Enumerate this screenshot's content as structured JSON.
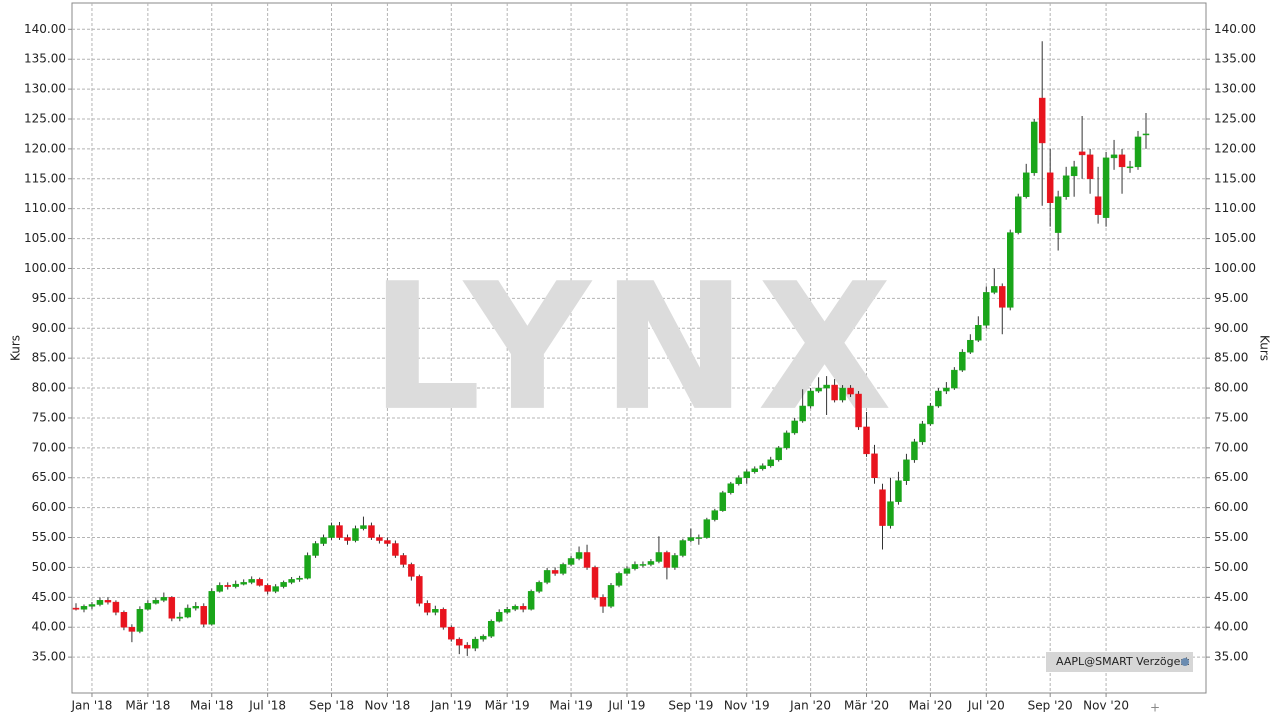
{
  "chart_data": {
    "type": "candlestick",
    "y_label": "Kurs",
    "watermark": "LYNX",
    "source_label": "AAPL@SMART Verzögert",
    "up_color": "#1aa51a",
    "down_color": "#e8141e",
    "grid": true,
    "ylim": [
      29,
      144.4
    ],
    "yticks": [
      {
        "value": 35,
        "label": "35.00"
      },
      {
        "value": 40,
        "label": "40.00"
      },
      {
        "value": 45,
        "label": "45.00"
      },
      {
        "value": 50,
        "label": "50.00"
      },
      {
        "value": 55,
        "label": "55.00"
      },
      {
        "value": 60,
        "label": "60.00"
      },
      {
        "value": 65,
        "label": "65.00"
      },
      {
        "value": 70,
        "label": "70.00"
      },
      {
        "value": 75,
        "label": "75.00"
      },
      {
        "value": 80,
        "label": "80.00"
      },
      {
        "value": 85,
        "label": "85.00"
      },
      {
        "value": 90,
        "label": "90.00"
      },
      {
        "value": 95,
        "label": "95.00"
      },
      {
        "value": 100,
        "label": "100.00"
      },
      {
        "value": 105,
        "label": "105.00"
      },
      {
        "value": 110,
        "label": "110.00"
      },
      {
        "value": 115,
        "label": "115.00"
      },
      {
        "value": 120,
        "label": "120.00"
      },
      {
        "value": 125,
        "label": "125.00"
      },
      {
        "value": 130,
        "label": "130.00"
      },
      {
        "value": 135,
        "label": "135.00"
      },
      {
        "value": 140,
        "label": "140.00"
      }
    ],
    "categories": [
      null,
      null,
      "Jan '18",
      null,
      null,
      null,
      null,
      null,
      null,
      "Mär '18",
      null,
      null,
      null,
      null,
      null,
      null,
      null,
      "Mai '18",
      null,
      null,
      null,
      null,
      null,
      null,
      "Jul '18",
      null,
      null,
      null,
      null,
      null,
      null,
      null,
      "Sep '18",
      null,
      null,
      null,
      null,
      null,
      null,
      "Nov '18",
      null,
      null,
      null,
      null,
      null,
      null,
      null,
      "Jan '19",
      null,
      null,
      null,
      null,
      null,
      null,
      "Mär '19",
      null,
      null,
      null,
      null,
      null,
      null,
      null,
      "Mai '19",
      null,
      null,
      null,
      null,
      null,
      null,
      "Jul '19",
      null,
      null,
      null,
      null,
      null,
      null,
      null,
      "Sep '19",
      null,
      null,
      null,
      null,
      null,
      null,
      "Nov '19",
      null,
      null,
      null,
      null,
      null,
      null,
      null,
      "Jan '20",
      null,
      null,
      null,
      null,
      null,
      null,
      "Mär '20",
      null,
      null,
      null,
      null,
      null,
      null,
      null,
      "Mai '20",
      null,
      null,
      null,
      null,
      null,
      null,
      "Jul '20",
      null,
      null,
      null,
      null,
      null,
      null,
      null,
      "Sep '20",
      null,
      null,
      null,
      null,
      null,
      null,
      "Nov '20",
      null,
      null,
      null,
      null,
      null
    ],
    "open": [
      43.2,
      43.0,
      43.5,
      43.8,
      44.5,
      44.2,
      42.5,
      40.0,
      39.3,
      43.0,
      44.0,
      44.5,
      45.0,
      41.5,
      41.7,
      43.2,
      43.5,
      40.5,
      46.0,
      47.0,
      46.8,
      47.2,
      47.5,
      48.0,
      47.0,
      46.0,
      46.8,
      47.5,
      48.0,
      48.2,
      52.0,
      54.0,
      55.0,
      57.0,
      55.0,
      54.5,
      56.5,
      57.0,
      55.0,
      54.5,
      54.0,
      52.0,
      50.5,
      48.5,
      44.0,
      42.5,
      43.0,
      40.0,
      38.0,
      37.0,
      36.5,
      38.0,
      38.5,
      41.0,
      42.5,
      43.0,
      43.5,
      43.0,
      46.0,
      47.5,
      49.5,
      49.0,
      50.5,
      51.5,
      52.5,
      50.0,
      45.0,
      43.5,
      47.0,
      49.0,
      49.8,
      50.5,
      50.5,
      51.0,
      52.5,
      50.0,
      52.0,
      54.5,
      55.0,
      55.0,
      58.0,
      59.5,
      62.5,
      64.0,
      65.0,
      66.0,
      66.5,
      67.0,
      68.0,
      70.0,
      72.5,
      74.5,
      77.0,
      79.5,
      80.0,
      80.5,
      78.0,
      80.0,
      79.0,
      73.5,
      69.0,
      63.0,
      57.0,
      61.0,
      64.5,
      68.0,
      71.0,
      74.0,
      77.0,
      79.5,
      80.0,
      83.0,
      86.0,
      88.0,
      90.5,
      96.0,
      97.0,
      93.5,
      106.0,
      112.0,
      116.0,
      128.5,
      116.0,
      106.0,
      112.0,
      115.5,
      119.5,
      119.0,
      112.0,
      108.5,
      118.5,
      119.0,
      117.0,
      117.0,
      122.5
    ],
    "high": [
      44.0,
      43.8,
      44.2,
      45.0,
      45.0,
      44.5,
      42.8,
      40.5,
      43.5,
      44.5,
      45.0,
      45.8,
      45.2,
      42.5,
      43.8,
      44.2,
      44.0,
      46.5,
      47.5,
      47.5,
      47.8,
      48.0,
      48.5,
      48.3,
      47.3,
      47.2,
      47.8,
      48.4,
      48.6,
      52.5,
      54.4,
      55.5,
      57.5,
      57.6,
      55.5,
      57.0,
      58.5,
      57.5,
      55.5,
      55.0,
      54.5,
      52.4,
      50.8,
      48.8,
      44.5,
      43.6,
      43.3,
      40.3,
      38.3,
      37.5,
      38.4,
      38.8,
      41.3,
      43.0,
      43.4,
      43.8,
      44.0,
      46.3,
      47.8,
      49.9,
      50.0,
      50.8,
      51.9,
      53.5,
      53.8,
      50.3,
      45.5,
      47.4,
      49.3,
      50.2,
      51.0,
      51.0,
      51.4,
      55.2,
      52.8,
      52.4,
      54.8,
      56.5,
      55.5,
      58.3,
      59.8,
      62.8,
      64.3,
      65.4,
      66.4,
      66.9,
      67.4,
      68.5,
      70.3,
      72.9,
      75.0,
      79.8,
      80.0,
      81.8,
      82.0,
      81.5,
      80.5,
      80.5,
      79.5,
      76.0,
      70.5,
      64.0,
      65.0,
      66.0,
      69.0,
      71.5,
      74.5,
      77.5,
      80.0,
      81.0,
      83.5,
      86.5,
      89.0,
      92.0,
      97.0,
      100.0,
      97.5,
      106.5,
      112.5,
      117.5,
      125.0,
      138.0,
      120.0,
      113.0,
      117.0,
      118.0,
      125.5,
      120.0,
      117.0,
      119.5,
      121.5,
      120.0,
      118.0,
      123.0,
      126.0
    ],
    "low": [
      42.8,
      42.5,
      43.0,
      43.5,
      43.8,
      42.0,
      39.5,
      37.5,
      39.0,
      42.8,
      43.8,
      44.2,
      41.0,
      41.0,
      41.5,
      42.8,
      40.0,
      40.3,
      45.8,
      46.3,
      46.5,
      47.0,
      47.2,
      46.8,
      45.5,
      45.7,
      46.5,
      47.2,
      47.6,
      48.0,
      51.6,
      53.6,
      54.6,
      54.6,
      53.8,
      54.2,
      56.2,
      54.6,
      54.0,
      53.5,
      51.6,
      50.0,
      47.8,
      43.5,
      42.0,
      42.0,
      39.6,
      37.6,
      35.5,
      35.2,
      36.0,
      37.6,
      38.2,
      40.8,
      42.2,
      42.7,
      42.5,
      42.8,
      45.7,
      47.2,
      48.6,
      48.7,
      50.2,
      51.2,
      49.6,
      44.6,
      42.4,
      43.2,
      46.7,
      48.6,
      49.5,
      50.0,
      50.2,
      50.7,
      48.0,
      49.6,
      51.7,
      54.2,
      53.8,
      54.8,
      57.7,
      59.3,
      62.2,
      63.7,
      64.0,
      65.7,
      66.2,
      66.7,
      67.7,
      69.7,
      72.2,
      74.2,
      76.6,
      79.2,
      75.5,
      77.6,
      77.6,
      78.5,
      73.0,
      68.5,
      64.0,
      53.0,
      56.5,
      60.5,
      63.8,
      67.5,
      70.5,
      73.7,
      76.7,
      79.0,
      79.7,
      82.7,
      85.7,
      87.7,
      90.0,
      95.7,
      89.0,
      93.0,
      105.7,
      111.7,
      115.5,
      110.5,
      107.0,
      103.0,
      111.5,
      112.0,
      115.0,
      112.5,
      107.5,
      107.0,
      116.5,
      112.5,
      116.0,
      116.5,
      120.0
    ],
    "close": [
      43.0,
      43.5,
      43.8,
      44.5,
      44.2,
      42.5,
      40.0,
      39.3,
      43.0,
      44.0,
      44.5,
      45.0,
      41.5,
      41.7,
      43.2,
      43.5,
      40.5,
      46.0,
      47.0,
      46.8,
      47.2,
      47.5,
      48.0,
      47.0,
      46.0,
      46.8,
      47.5,
      48.0,
      48.2,
      52.0,
      54.0,
      55.0,
      57.0,
      55.0,
      54.5,
      56.5,
      57.0,
      55.0,
      54.5,
      54.0,
      52.0,
      50.5,
      48.5,
      44.0,
      42.5,
      43.0,
      40.0,
      38.0,
      37.0,
      36.5,
      38.0,
      38.5,
      41.0,
      42.5,
      43.0,
      43.5,
      43.0,
      46.0,
      47.5,
      49.5,
      49.0,
      50.5,
      51.5,
      52.5,
      50.0,
      45.0,
      43.5,
      47.0,
      49.0,
      49.8,
      50.5,
      50.5,
      51.0,
      52.5,
      50.0,
      52.0,
      54.5,
      55.0,
      55.0,
      58.0,
      59.5,
      62.5,
      64.0,
      65.0,
      66.0,
      66.5,
      67.0,
      68.0,
      70.0,
      72.5,
      74.5,
      77.0,
      79.5,
      80.0,
      80.5,
      78.0,
      80.0,
      79.0,
      73.5,
      69.0,
      65.0,
      57.0,
      61.0,
      64.5,
      68.0,
      71.0,
      74.0,
      77.0,
      79.5,
      80.0,
      83.0,
      86.0,
      88.0,
      90.5,
      96.0,
      97.0,
      93.5,
      106.0,
      112.0,
      116.0,
      124.5,
      121.0,
      111.0,
      112.0,
      115.5,
      117.0,
      119.0,
      115.0,
      109.0,
      118.5,
      119.0,
      117.0,
      117.0,
      122.0,
      122.5
    ]
  }
}
